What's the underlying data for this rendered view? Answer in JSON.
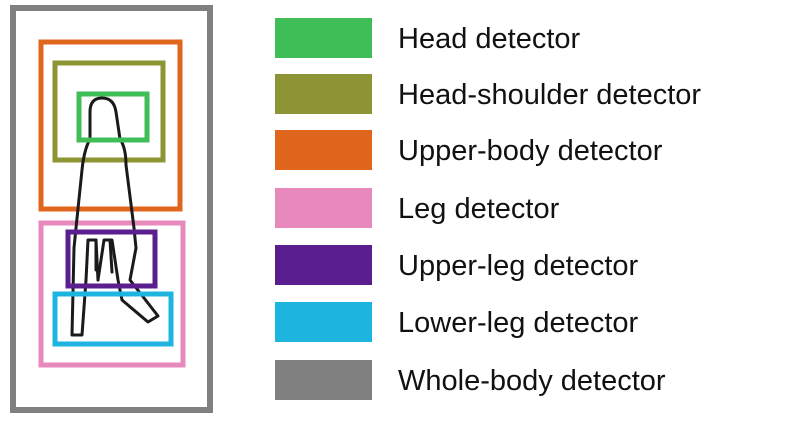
{
  "detectors": [
    {
      "id": "head",
      "label": "Head detector",
      "color": "#3fbd57"
    },
    {
      "id": "head-shoulder",
      "label": "Head-shoulder detector",
      "color": "#8c9434"
    },
    {
      "id": "upper-body",
      "label": "Upper-body detector",
      "color": "#e0661d"
    },
    {
      "id": "leg",
      "label": "Leg detector",
      "color": "#e889bd"
    },
    {
      "id": "upper-leg",
      "label": "Upper-leg detector",
      "color": "#5b1e8f"
    },
    {
      "id": "lower-leg",
      "label": "Lower-leg detector",
      "color": "#1eb4e0"
    },
    {
      "id": "whole-body",
      "label": "Whole-body detector",
      "color": "#808080"
    }
  ],
  "figure_outline_color": "#1a1a1a"
}
